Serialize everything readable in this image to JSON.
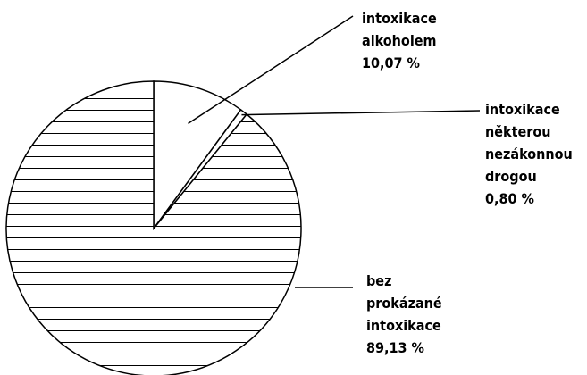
{
  "chart_data": {
    "type": "pie",
    "categories": [
      "intoxikace alkoholem",
      "intoxikace některou nezákonnou drogou",
      "bez prokázané intoxikace"
    ],
    "values": [
      10.07,
      0.8,
      89.13
    ],
    "value_labels": [
      "10,07 %",
      "0,80 %",
      "89,13 %"
    ],
    "colors": [
      "#ffffff",
      "#ffffff",
      "#ffffff"
    ],
    "hatch": [
      false,
      false,
      true
    ]
  }
}
